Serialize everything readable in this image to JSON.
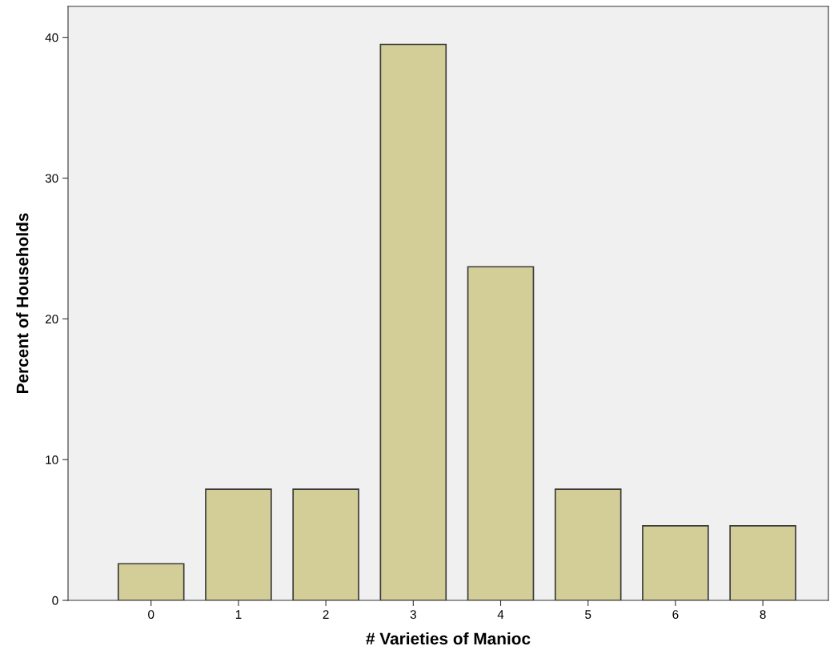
{
  "chart_data": {
    "type": "bar",
    "xlabel": "# Varieties of Manioc",
    "ylabel": "Percent of Households",
    "categories": [
      "0",
      "1",
      "2",
      "3",
      "4",
      "5",
      "6",
      "8"
    ],
    "values": [
      2.6,
      7.9,
      7.9,
      39.5,
      23.7,
      7.9,
      5.3,
      5.3
    ],
    "color": "#d3ce97",
    "ylim": [
      0,
      42.2
    ],
    "yticks": [
      0,
      10,
      20,
      30,
      40
    ],
    "grid": false,
    "legend": false
  }
}
